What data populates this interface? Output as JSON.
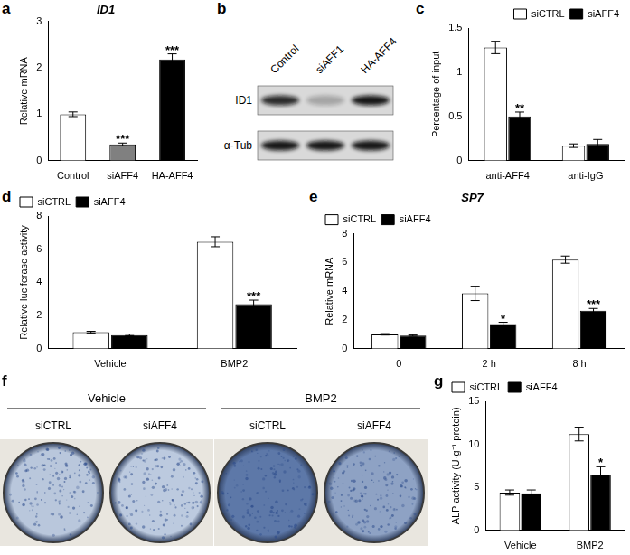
{
  "chart_data": [
    {
      "panel": "a",
      "type": "bar",
      "title": "ID1",
      "y_label": "Relative mRNA",
      "categories": [
        "Control",
        "siAFF4",
        "HA-AFF4"
      ],
      "values": [
        1.0,
        0.35,
        2.18
      ],
      "errors": [
        0.05,
        0.03,
        0.12
      ],
      "annotations": [
        null,
        "***",
        "***"
      ],
      "colors": [
        "#ffffff",
        "#808080",
        "#000000"
      ],
      "ylim": [
        0,
        3
      ],
      "yticks": [
        0,
        1,
        2,
        3
      ],
      "grid": false
    },
    {
      "panel": "c",
      "type": "bar",
      "y_label": "Percentage of input",
      "categories": [
        "anti-AFF4",
        "anti-IgG"
      ],
      "series": [
        {
          "name": "siCTRL",
          "color": "#ffffff",
          "values": [
            1.28,
            0.17
          ],
          "errors": [
            0.07,
            0.02
          ],
          "annotations": [
            null,
            null
          ]
        },
        {
          "name": "siAFF4",
          "color": "#000000",
          "values": [
            0.5,
            0.19
          ],
          "errors": [
            0.05,
            0.05
          ],
          "annotations": [
            "**",
            null
          ]
        }
      ],
      "ylim": [
        0,
        1.5
      ],
      "yticks": [
        0,
        0.5,
        1,
        1.5
      ],
      "grid": false,
      "legend": "top-right"
    },
    {
      "panel": "d",
      "type": "bar",
      "y_label": "Relative luciferase activity",
      "categories": [
        "Vehicle",
        "BMP2"
      ],
      "series": [
        {
          "name": "siCTRL",
          "color": "#ffffff",
          "values": [
            1.0,
            6.45
          ],
          "errors": [
            0.05,
            0.3
          ],
          "annotations": [
            null,
            null
          ]
        },
        {
          "name": "siAFF4",
          "color": "#000000",
          "values": [
            0.82,
            2.68
          ],
          "errors": [
            0.05,
            0.25
          ],
          "annotations": [
            null,
            "***"
          ]
        }
      ],
      "ylim": [
        0,
        8
      ],
      "yticks": [
        0,
        2,
        4,
        6,
        8
      ],
      "grid": false,
      "legend": "top-left"
    },
    {
      "panel": "e",
      "type": "bar",
      "title": "SP7",
      "y_label": "Relative mRNA",
      "categories": [
        "0",
        "2 h",
        "8 h"
      ],
      "series": [
        {
          "name": "siCTRL",
          "color": "#ffffff",
          "values": [
            1.0,
            3.85,
            6.2
          ],
          "errors": [
            0.05,
            0.5,
            0.25
          ],
          "annotations": [
            null,
            null,
            null
          ]
        },
        {
          "name": "siAFF4",
          "color": "#000000",
          "values": [
            0.92,
            1.72,
            2.65
          ],
          "errors": [
            0.05,
            0.12,
            0.15
          ],
          "annotations": [
            null,
            "*",
            "***"
          ]
        }
      ],
      "ylim": [
        0,
        8
      ],
      "yticks": [
        0,
        2,
        4,
        6,
        8
      ],
      "grid": false,
      "legend": "top-left"
    },
    {
      "panel": "g",
      "type": "bar",
      "y_label": "ALP activity (U·g⁻¹ protein)",
      "categories": [
        "Vehicle",
        "BMP2"
      ],
      "series": [
        {
          "name": "siCTRL",
          "color": "#ffffff",
          "values": [
            4.4,
            11.2
          ],
          "errors": [
            0.3,
            0.8
          ],
          "annotations": [
            null,
            null
          ]
        },
        {
          "name": "siAFF4",
          "color": "#000000",
          "values": [
            4.3,
            6.5
          ],
          "errors": [
            0.4,
            0.9
          ],
          "annotations": [
            null,
            "*"
          ]
        }
      ],
      "ylim": [
        0,
        15
      ],
      "yticks": [
        0,
        5,
        10,
        15
      ],
      "grid": false,
      "legend": "top-left"
    }
  ],
  "blot": {
    "panel": "b",
    "lanes": [
      "Control",
      "siAFF1",
      "HA-AFF4"
    ],
    "rows": [
      "ID1",
      "α-Tub"
    ]
  },
  "stain": {
    "panel": "f",
    "groups": [
      {
        "title": "Vehicle",
        "wells": [
          "siCTRL",
          "siAFF4"
        ]
      },
      {
        "title": "BMP2",
        "wells": [
          "siCTRL",
          "siAFF4"
        ]
      }
    ]
  }
}
